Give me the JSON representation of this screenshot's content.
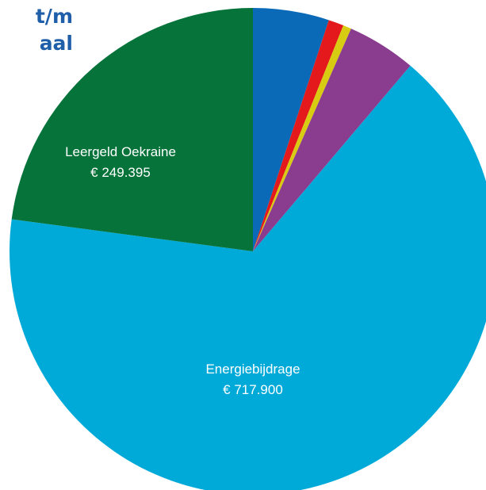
{
  "title": {
    "line1": "t/m",
    "line2": "aal"
  },
  "chart_data": {
    "type": "pie",
    "start_angle_deg": 0,
    "direction": "clockwise",
    "slices": [
      {
        "key": "blue",
        "label": "",
        "value_text": "",
        "value": 55000,
        "color": "#0a6ab7"
      },
      {
        "key": "red",
        "label": "",
        "value_text": "",
        "value": 11000,
        "color": "#e3191b"
      },
      {
        "key": "yellow",
        "label": "",
        "value_text": "",
        "value": 6000,
        "color": "#d8cc12"
      },
      {
        "key": "purple",
        "label": "",
        "value_text": "",
        "value": 50000,
        "color": "#8a3c8e"
      },
      {
        "key": "energie",
        "label": "Energiebijdrage",
        "value_text": "€ 717.900",
        "value": 717900,
        "color": "#00aad8"
      },
      {
        "key": "leergeld",
        "label": "Leergeld Oekraine",
        "value_text": "€ 249.395",
        "value": 249395,
        "color": "#06733a"
      }
    ]
  }
}
